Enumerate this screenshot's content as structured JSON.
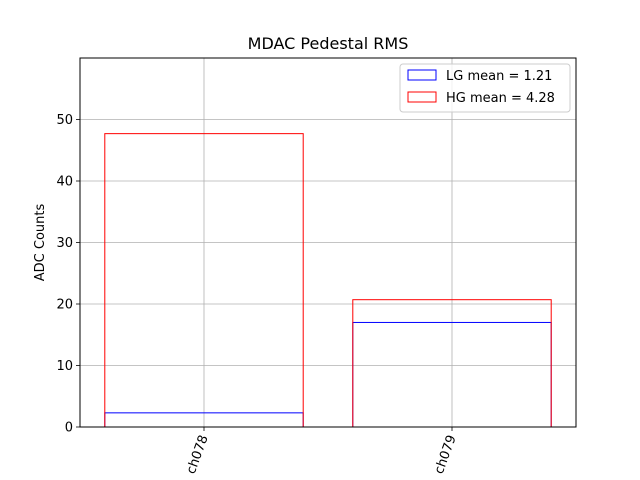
{
  "chart_data": {
    "type": "bar",
    "title": "MDAC Pedestal RMS",
    "xlabel": "",
    "ylabel": "ADC Counts",
    "categories": [
      "ch078",
      "ch079"
    ],
    "ylim": [
      0,
      60
    ],
    "yticks": [
      0,
      10,
      20,
      30,
      40,
      50
    ],
    "grid": true,
    "legend_position": "top-right",
    "series": [
      {
        "name": "LG mean = 1.21",
        "color": "#0000ff",
        "values": [
          2.3,
          17.0
        ]
      },
      {
        "name": "HG mean = 4.28",
        "color": "#ff0000",
        "values": [
          47.7,
          20.7
        ]
      }
    ]
  }
}
